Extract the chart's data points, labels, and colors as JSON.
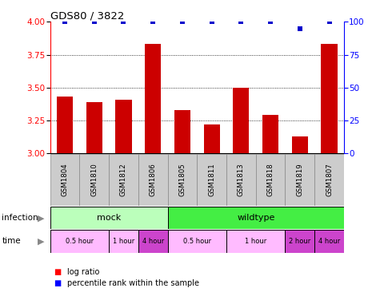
{
  "title": "GDS80 / 3822",
  "samples": [
    "GSM1804",
    "GSM1810",
    "GSM1812",
    "GSM1806",
    "GSM1805",
    "GSM1811",
    "GSM1813",
    "GSM1818",
    "GSM1819",
    "GSM1807"
  ],
  "log_ratio": [
    3.43,
    3.39,
    3.41,
    3.83,
    3.33,
    3.22,
    3.5,
    3.29,
    3.13,
    3.83
  ],
  "percentile": [
    100,
    100,
    100,
    100,
    100,
    100,
    100,
    100,
    95,
    100
  ],
  "ylim_left": [
    3.0,
    4.0
  ],
  "ylim_right": [
    0,
    100
  ],
  "yticks_left": [
    3.0,
    3.25,
    3.5,
    3.75,
    4.0
  ],
  "yticks_right": [
    0,
    25,
    50,
    75,
    100
  ],
  "bar_color": "#cc0000",
  "dot_color": "#0000cc",
  "infection_mock_color": "#bbffbb",
  "infection_wildtype_color": "#44ee44",
  "time_color_light": "#ffbbff",
  "time_color_dark": "#cc44cc",
  "sample_bg_color": "#cccccc",
  "time_segments": [
    {
      "label": "0.5 hour",
      "start": 0,
      "end": 2,
      "dark": false
    },
    {
      "label": "1 hour",
      "start": 2,
      "end": 3,
      "dark": false
    },
    {
      "label": "4 hour",
      "start": 3,
      "end": 4,
      "dark": true
    },
    {
      "label": "0.5 hour",
      "start": 4,
      "end": 6,
      "dark": false
    },
    {
      "label": "1 hour",
      "start": 6,
      "end": 8,
      "dark": false
    },
    {
      "label": "2 hour",
      "start": 8,
      "end": 9,
      "dark": true
    },
    {
      "label": "4 hour",
      "start": 9,
      "end": 10,
      "dark": true
    }
  ]
}
